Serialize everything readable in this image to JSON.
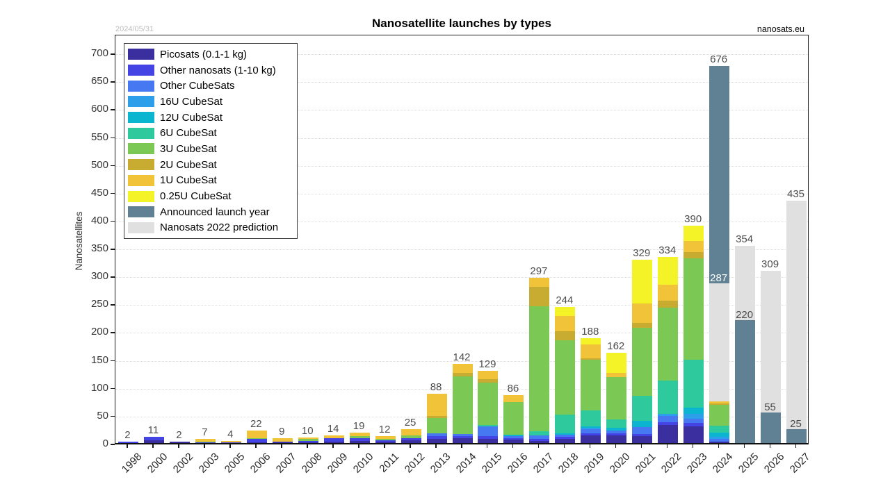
{
  "header": {
    "title": "Nanosatellite launches by types",
    "date_stamp": "2024/05/31",
    "site": "nanosats.eu"
  },
  "chart_data": {
    "type": "bar",
    "stacked": true,
    "title": "Nanosatellite launches by types",
    "xlabel": "",
    "ylabel": "Nanosatellites",
    "ylim": [
      0,
      735
    ],
    "yticks": [
      0,
      50,
      100,
      150,
      200,
      250,
      300,
      350,
      400,
      450,
      500,
      550,
      600,
      650,
      700
    ],
    "grid": "horizontal-dotted",
    "legend_position": "top-left-inside",
    "label_color": "#4d4d4d",
    "categories": [
      "1998",
      "2000",
      "2002",
      "2003",
      "2005",
      "2006",
      "2007",
      "2008",
      "2009",
      "2010",
      "2011",
      "2012",
      "2013",
      "2014",
      "2015",
      "2016",
      "2017",
      "2018",
      "2019",
      "2020",
      "2021",
      "2022",
      "2023",
      "2024",
      "2025",
      "2026",
      "2027"
    ],
    "series": [
      {
        "name": "Picosats (0.1-1 kg)",
        "key": "pico",
        "color": "#3b2e9e",
        "values": [
          0,
          5,
          2,
          0,
          0,
          1,
          1,
          1,
          3,
          4,
          3,
          5,
          7,
          9,
          7,
          6,
          4,
          7,
          14,
          14,
          12,
          32,
          30,
          2,
          0,
          0,
          0
        ]
      },
      {
        "name": "Other nanosats (1-10 kg)",
        "key": "other_nano",
        "color": "#4443e4",
        "values": [
          2,
          6,
          0,
          2,
          1,
          6,
          2,
          3,
          6,
          5,
          2,
          4,
          6,
          4,
          5,
          3,
          4,
          4,
          3,
          3,
          4,
          6,
          6,
          0,
          0,
          0,
          0
        ]
      },
      {
        "name": "Other CubeSats",
        "key": "other_cube",
        "color": "#4678f2",
        "values": [
          0,
          0,
          0,
          0,
          0,
          0,
          0,
          0,
          0,
          0,
          0,
          0,
          5,
          3,
          18,
          3,
          6,
          4,
          8,
          5,
          13,
          10,
          8,
          5,
          0,
          0,
          0
        ]
      },
      {
        "name": "16U CubeSat",
        "key": "u16",
        "color": "#2d9ee9",
        "values": [
          0,
          0,
          0,
          0,
          0,
          0,
          0,
          0,
          0,
          0,
          0,
          0,
          0,
          0,
          0,
          0,
          0,
          0,
          2,
          0,
          0,
          4,
          8,
          4,
          0,
          0,
          0
        ]
      },
      {
        "name": "12U CubeSat",
        "key": "u12",
        "color": "#0bb5cf",
        "values": [
          0,
          0,
          0,
          0,
          0,
          0,
          0,
          0,
          0,
          0,
          0,
          0,
          0,
          0,
          0,
          3,
          0,
          2,
          3,
          6,
          11,
          0,
          12,
          8,
          0,
          0,
          0
        ]
      },
      {
        "name": "6U CubeSat",
        "key": "u6",
        "color": "#2fc99e",
        "values": [
          0,
          0,
          0,
          0,
          0,
          0,
          0,
          0,
          0,
          0,
          0,
          0,
          0,
          0,
          3,
          0,
          7,
          34,
          28,
          14,
          45,
          60,
          86,
          12,
          0,
          0,
          0
        ]
      },
      {
        "name": "3U CubeSat",
        "key": "u3",
        "color": "#7cc854",
        "values": [
          0,
          0,
          0,
          1,
          0,
          2,
          0,
          3,
          0,
          3,
          2,
          5,
          27,
          104,
          76,
          59,
          224,
          134,
          92,
          76,
          122,
          131,
          181,
          38,
          0,
          0,
          0
        ]
      },
      {
        "name": "2U CubeSat",
        "key": "u2",
        "color": "#c8ac31",
        "values": [
          0,
          0,
          0,
          0,
          0,
          0,
          0,
          0,
          0,
          0,
          0,
          0,
          3,
          6,
          6,
          0,
          35,
          16,
          2,
          0,
          8,
          12,
          12,
          2,
          0,
          0,
          0
        ]
      },
      {
        "name": "1U CubeSat",
        "key": "u1",
        "color": "#f1c339",
        "values": [
          0,
          0,
          0,
          4,
          3,
          13,
          6,
          3,
          5,
          7,
          5,
          11,
          40,
          16,
          14,
          12,
          17,
          27,
          25,
          8,
          36,
          29,
          19,
          4,
          0,
          0,
          0
        ]
      },
      {
        "name": "0.25U CubeSat",
        "key": "u025",
        "color": "#f4f327",
        "values": [
          0,
          0,
          0,
          0,
          0,
          0,
          0,
          0,
          0,
          0,
          0,
          0,
          0,
          0,
          0,
          0,
          0,
          16,
          11,
          36,
          78,
          50,
          28,
          0,
          0,
          0,
          0
        ]
      },
      {
        "name": "Announced launch year",
        "key": "announced",
        "color": "#5f8193",
        "values": [
          0,
          0,
          0,
          0,
          0,
          0,
          0,
          0,
          0,
          0,
          0,
          0,
          0,
          0,
          0,
          0,
          0,
          0,
          0,
          0,
          0,
          0,
          0,
          676,
          220,
          55,
          25
        ]
      },
      {
        "name": "Nanosats 2022 prediction",
        "key": "prediction",
        "color": "#e0e0e0",
        "values": [
          0,
          0,
          0,
          0,
          0,
          0,
          0,
          0,
          0,
          0,
          0,
          0,
          0,
          0,
          0,
          0,
          0,
          0,
          0,
          0,
          0,
          0,
          0,
          287,
          354,
          309,
          435
        ]
      }
    ],
    "bar_labels": [
      "2",
      "11",
      "2",
      "7",
      "4",
      "22",
      "9",
      "10",
      "14",
      "19",
      "12",
      "25",
      "88",
      "142",
      "129",
      "86",
      "297",
      "244",
      "188",
      "162",
      "329",
      "334",
      "390",
      "676",
      "354",
      "309",
      "435"
    ],
    "inner_labels": [
      {
        "category": "2024",
        "text": "287",
        "color": "#ffffff"
      },
      {
        "category": "2025",
        "text": "220",
        "color": "#4d4d4d"
      },
      {
        "category": "2026",
        "text": "55",
        "color": "#4d4d4d"
      },
      {
        "category": "2027",
        "text": "25",
        "color": "#4d4d4d"
      }
    ]
  }
}
